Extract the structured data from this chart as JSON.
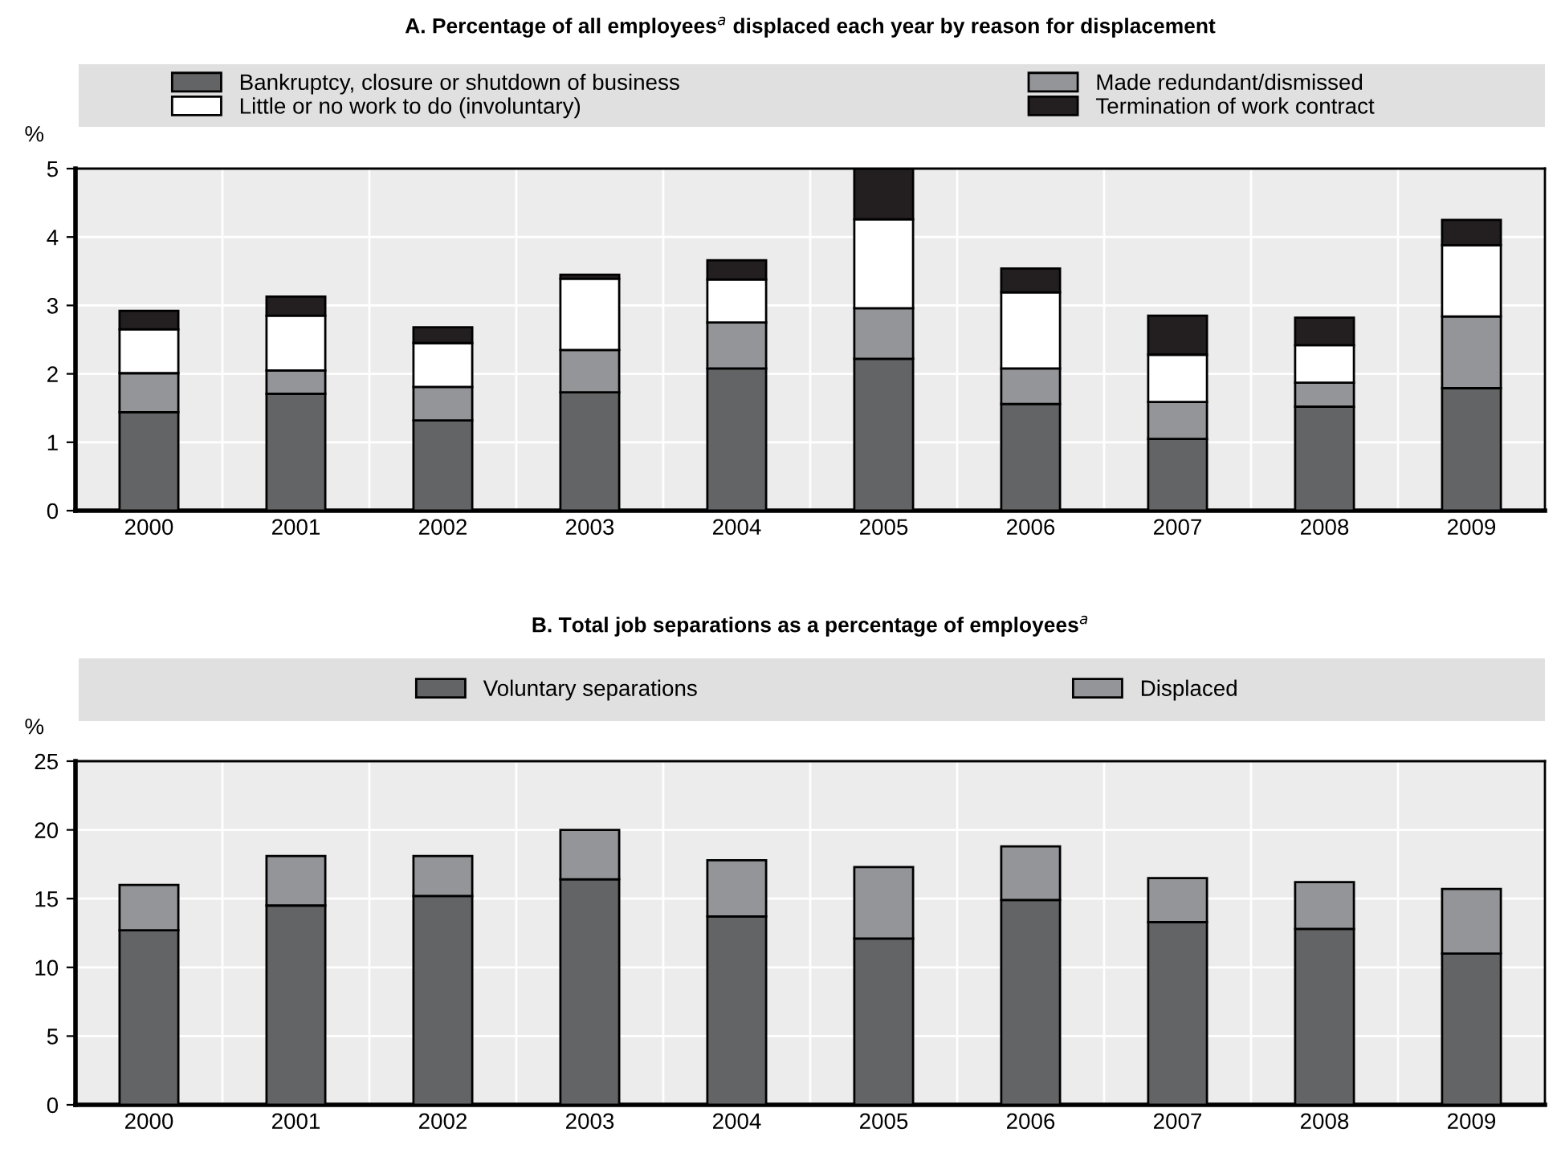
{
  "chart_data": [
    {
      "type": "bar",
      "stacked": true,
      "title": "A. Percentage of all employees$^{a}$ displaced each year by reason for displacement",
      "ylabel": "%",
      "categories": [
        "2000",
        "2001",
        "2002",
        "2003",
        "2004",
        "2005",
        "2006",
        "2007",
        "2008",
        "2009"
      ],
      "series": [
        {
          "name": "Bankruptcy, closure or shutdown of business",
          "color": "#636466",
          "values": [
            1.44,
            1.71,
            1.32,
            1.73,
            2.08,
            2.22,
            1.56,
            1.05,
            1.52,
            1.79
          ]
        },
        {
          "name": "Made redundant/dismissed",
          "color": "#939598",
          "values": [
            0.57,
            0.34,
            0.49,
            0.62,
            0.67,
            0.74,
            0.52,
            0.54,
            0.35,
            1.05
          ]
        },
        {
          "name": "Little or no work to do (involuntary)",
          "color": "#ffffff",
          "values": [
            0.64,
            0.8,
            0.64,
            1.04,
            0.63,
            1.3,
            1.11,
            0.69,
            0.55,
            1.04
          ]
        },
        {
          "name": "Termination of work contract",
          "color": "#231f20",
          "values": [
            0.27,
            0.28,
            0.23,
            0.06,
            0.28,
            0.74,
            0.35,
            0.57,
            0.4,
            0.37
          ]
        }
      ],
      "ylim": [
        0,
        5
      ],
      "yticks": [
        0,
        1,
        2,
        3,
        4,
        5
      ],
      "grid": true,
      "legend": "top"
    },
    {
      "type": "bar",
      "stacked": true,
      "title": "B. Total job separations as a percentage of employees$^{a}$",
      "ylabel": "%",
      "categories": [
        "2000",
        "2001",
        "2002",
        "2003",
        "2004",
        "2005",
        "2006",
        "2007",
        "2008",
        "2009"
      ],
      "series": [
        {
          "name": "Voluntary separations",
          "color": "#636466",
          "values": [
            12.7,
            14.5,
            15.2,
            16.4,
            13.7,
            12.1,
            14.9,
            13.3,
            12.8,
            11.0
          ]
        },
        {
          "name": "Displaced",
          "color": "#939598",
          "values": [
            3.3,
            3.6,
            2.9,
            3.6,
            4.1,
            5.2,
            3.9,
            3.2,
            3.4,
            4.7
          ]
        }
      ],
      "ylim": [
        0,
        25
      ],
      "yticks": [
        0,
        5,
        10,
        15,
        20,
        25
      ],
      "grid": true,
      "legend": "top"
    }
  ]
}
